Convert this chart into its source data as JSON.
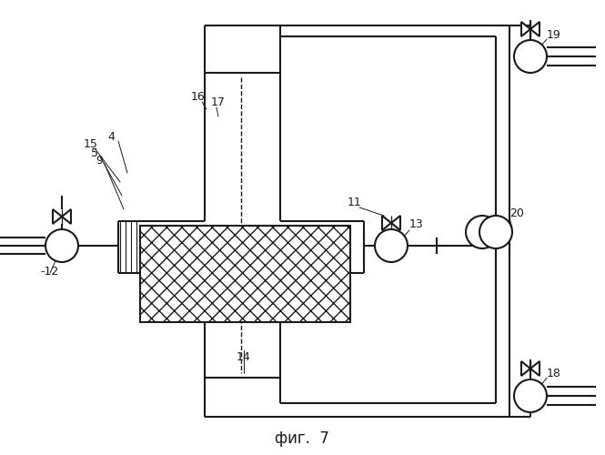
{
  "bg_color": "#ffffff",
  "line_color": "#1a1a1a",
  "lw": 1.5,
  "title": "фиг.  7",
  "title_fontsize": 12,
  "figsize": [
    6.65,
    5.0
  ],
  "dpi": 100
}
